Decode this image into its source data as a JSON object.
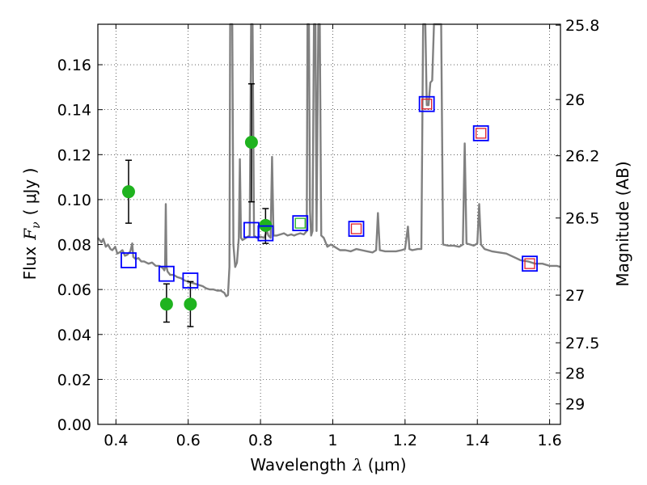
{
  "chart_data": {
    "type": "scatter",
    "xlabel_text": "Wavelength",
    "xlabel_symbol": "λ",
    "xlabel_unit": "(μm)",
    "ylabel_text": "Flux",
    "ylabel_symbol": "F",
    "ylabel_subscript": "ν",
    "ylabel_unit": "( μJy )",
    "y2label": "Magnitude (AB)",
    "xlim": [
      0.35,
      1.63
    ],
    "ylim": [
      0.0,
      0.178
    ],
    "grid": true,
    "x_ticks": [
      0.4,
      0.6,
      0.8,
      1.0,
      1.2,
      1.4,
      1.6
    ],
    "x_tick_labels": [
      "0.4",
      "0.6",
      "0.8",
      "1",
      "1.2",
      "1.4",
      "1.6"
    ],
    "y_ticks": [
      0.0,
      0.02,
      0.04,
      0.06,
      0.08,
      0.1,
      0.12,
      0.14,
      0.16
    ],
    "y_tick_labels": [
      "0.00",
      "0.02",
      "0.04",
      "0.06",
      "0.08",
      "0.10",
      "0.12",
      "0.14",
      "0.16"
    ],
    "y2_ticks": [
      {
        "label": "25.8",
        "flux": 0.1776
      },
      {
        "label": "26",
        "flux": 0.1445
      },
      {
        "label": "26.2",
        "flux": 0.1195
      },
      {
        "label": "26.5",
        "flux": 0.0918
      },
      {
        "label": "27",
        "flux": 0.0575
      },
      {
        "label": "27.5",
        "flux": 0.0363
      },
      {
        "label": "28",
        "flux": 0.0229
      },
      {
        "label": "29",
        "flux": 0.0091
      }
    ],
    "series": [
      {
        "name": "Photometry (green circles)",
        "marker": "circle",
        "color": "#1fb31f",
        "points": [
          {
            "x": 0.435,
            "y": 0.1035,
            "err": [
              0.0895,
              0.1175
            ]
          },
          {
            "x": 0.54,
            "y": 0.0535,
            "err": [
              0.0455,
              0.0625
            ]
          },
          {
            "x": 0.606,
            "y": 0.0535,
            "err": [
              0.0435,
              0.0635
            ]
          },
          {
            "x": 0.775,
            "y": 0.1255,
            "err": [
              0.099,
              0.1515
            ]
          },
          {
            "x": 0.814,
            "y": 0.0885,
            "err": [
              0.0805,
              0.096
            ]
          }
        ]
      },
      {
        "name": "Model synthetic photometry (blue squares)",
        "marker": "square",
        "color": "#0000ff",
        "points": [
          {
            "x": 0.435,
            "y": 0.073
          },
          {
            "x": 0.54,
            "y": 0.067
          },
          {
            "x": 0.606,
            "y": 0.064
          },
          {
            "x": 0.775,
            "y": 0.0865
          },
          {
            "x": 0.814,
            "y": 0.085
          },
          {
            "x": 0.91,
            "y": 0.0895
          },
          {
            "x": 1.065,
            "y": 0.087
          },
          {
            "x": 1.26,
            "y": 0.1425
          },
          {
            "x": 1.41,
            "y": 0.1295
          },
          {
            "x": 1.545,
            "y": 0.0715
          }
        ]
      },
      {
        "name": "Detections (green squares)",
        "marker": "square-small",
        "color": "#1fb31f",
        "points": [
          {
            "x": 0.91,
            "y": 0.0895
          }
        ]
      },
      {
        "name": "Detections (red squares)",
        "marker": "square-small",
        "color": "#e0202a",
        "points": [
          {
            "x": 1.065,
            "y": 0.087
          },
          {
            "x": 1.26,
            "y": 0.1425
          },
          {
            "x": 1.41,
            "y": 0.1295
          },
          {
            "x": 1.545,
            "y": 0.0715
          }
        ]
      },
      {
        "name": "Model spectrum (gray line)",
        "line": true,
        "color": "#808080",
        "points": [
          [
            0.35,
            0.083
          ],
          [
            0.36,
            0.081
          ],
          [
            0.365,
            0.0825
          ],
          [
            0.372,
            0.079
          ],
          [
            0.378,
            0.08
          ],
          [
            0.385,
            0.078
          ],
          [
            0.39,
            0.0775
          ],
          [
            0.398,
            0.079
          ],
          [
            0.404,
            0.076
          ],
          [
            0.41,
            0.0765
          ],
          [
            0.418,
            0.0775
          ],
          [
            0.425,
            0.075
          ],
          [
            0.432,
            0.0755
          ],
          [
            0.44,
            0.077
          ],
          [
            0.445,
            0.0805
          ],
          [
            0.448,
            0.0745
          ],
          [
            0.455,
            0.0735
          ],
          [
            0.462,
            0.074
          ],
          [
            0.47,
            0.0725
          ],
          [
            0.478,
            0.0725
          ],
          [
            0.49,
            0.0715
          ],
          [
            0.5,
            0.072
          ],
          [
            0.51,
            0.0705
          ],
          [
            0.52,
            0.0705
          ],
          [
            0.53,
            0.0695
          ],
          [
            0.534,
            0.0685
          ],
          [
            0.536,
            0.07
          ],
          [
            0.538,
            0.098
          ],
          [
            0.54,
            0.07
          ],
          [
            0.543,
            0.068
          ],
          [
            0.55,
            0.0665
          ],
          [
            0.56,
            0.0665
          ],
          [
            0.57,
            0.0655
          ],
          [
            0.58,
            0.065
          ],
          [
            0.59,
            0.064
          ],
          [
            0.6,
            0.0635
          ],
          [
            0.61,
            0.063
          ],
          [
            0.62,
            0.0625
          ],
          [
            0.63,
            0.062
          ],
          [
            0.64,
            0.0615
          ],
          [
            0.65,
            0.0605
          ],
          [
            0.66,
            0.06
          ],
          [
            0.67,
            0.06
          ],
          [
            0.68,
            0.0595
          ],
          [
            0.69,
            0.0595
          ],
          [
            0.7,
            0.0585
          ],
          [
            0.705,
            0.057
          ],
          [
            0.71,
            0.0575
          ],
          [
            0.714,
            0.07
          ],
          [
            0.716,
            0.178
          ],
          [
            0.722,
            0.178
          ],
          [
            0.725,
            0.08
          ],
          [
            0.73,
            0.07
          ],
          [
            0.735,
            0.072
          ],
          [
            0.74,
            0.083
          ],
          [
            0.743,
            0.118
          ],
          [
            0.746,
            0.083
          ],
          [
            0.75,
            0.082
          ],
          [
            0.76,
            0.083
          ],
          [
            0.77,
            0.084
          ],
          [
            0.774,
            0.178
          ],
          [
            0.778,
            0.178
          ],
          [
            0.782,
            0.084
          ],
          [
            0.79,
            0.083
          ],
          [
            0.8,
            0.0835
          ],
          [
            0.81,
            0.083
          ],
          [
            0.818,
            0.086
          ],
          [
            0.822,
            0.084
          ],
          [
            0.828,
            0.083
          ],
          [
            0.832,
            0.119
          ],
          [
            0.836,
            0.084
          ],
          [
            0.845,
            0.084
          ],
          [
            0.855,
            0.0845
          ],
          [
            0.865,
            0.085
          ],
          [
            0.875,
            0.084
          ],
          [
            0.885,
            0.0845
          ],
          [
            0.893,
            0.084
          ],
          [
            0.9,
            0.0845
          ],
          [
            0.91,
            0.085
          ],
          [
            0.92,
            0.0845
          ],
          [
            0.928,
            0.086
          ],
          [
            0.93,
            0.178
          ],
          [
            0.934,
            0.178
          ],
          [
            0.937,
            0.095
          ],
          [
            0.94,
            0.084
          ],
          [
            0.944,
            0.086
          ],
          [
            0.948,
            0.178
          ],
          [
            0.952,
            0.178
          ],
          [
            0.955,
            0.086
          ],
          [
            0.96,
            0.178
          ],
          [
            0.964,
            0.178
          ],
          [
            0.968,
            0.084
          ],
          [
            0.975,
            0.083
          ],
          [
            0.985,
            0.079
          ],
          [
            0.995,
            0.08
          ],
          [
            1.005,
            0.079
          ],
          [
            1.02,
            0.0775
          ],
          [
            1.035,
            0.0775
          ],
          [
            1.05,
            0.077
          ],
          [
            1.065,
            0.078
          ],
          [
            1.08,
            0.0775
          ],
          [
            1.095,
            0.077
          ],
          [
            1.11,
            0.0765
          ],
          [
            1.12,
            0.0775
          ],
          [
            1.125,
            0.094
          ],
          [
            1.13,
            0.0775
          ],
          [
            1.145,
            0.077
          ],
          [
            1.16,
            0.077
          ],
          [
            1.175,
            0.077
          ],
          [
            1.19,
            0.0775
          ],
          [
            1.2,
            0.078
          ],
          [
            1.208,
            0.088
          ],
          [
            1.212,
            0.078
          ],
          [
            1.22,
            0.0775
          ],
          [
            1.235,
            0.078
          ],
          [
            1.245,
            0.078
          ],
          [
            1.25,
            0.178
          ],
          [
            1.256,
            0.178
          ],
          [
            1.26,
            0.142
          ],
          [
            1.265,
            0.142
          ],
          [
            1.27,
            0.152
          ],
          [
            1.275,
            0.153
          ],
          [
            1.28,
            0.178
          ],
          [
            1.288,
            0.178
          ],
          [
            1.296,
            0.178
          ],
          [
            1.3,
            0.178
          ],
          [
            1.305,
            0.08
          ],
          [
            1.32,
            0.0795
          ],
          [
            1.335,
            0.0795
          ],
          [
            1.35,
            0.079
          ],
          [
            1.36,
            0.08
          ],
          [
            1.365,
            0.125
          ],
          [
            1.37,
            0.0805
          ],
          [
            1.38,
            0.08
          ],
          [
            1.39,
            0.0795
          ],
          [
            1.4,
            0.0805
          ],
          [
            1.405,
            0.098
          ],
          [
            1.41,
            0.08
          ],
          [
            1.42,
            0.078
          ],
          [
            1.44,
            0.077
          ],
          [
            1.46,
            0.0765
          ],
          [
            1.48,
            0.076
          ],
          [
            1.5,
            0.0745
          ],
          [
            1.52,
            0.073
          ],
          [
            1.54,
            0.0725
          ],
          [
            1.56,
            0.0715
          ],
          [
            1.58,
            0.0715
          ],
          [
            1.6,
            0.0705
          ],
          [
            1.62,
            0.0705
          ],
          [
            1.63,
            0.07
          ]
        ]
      }
    ]
  }
}
